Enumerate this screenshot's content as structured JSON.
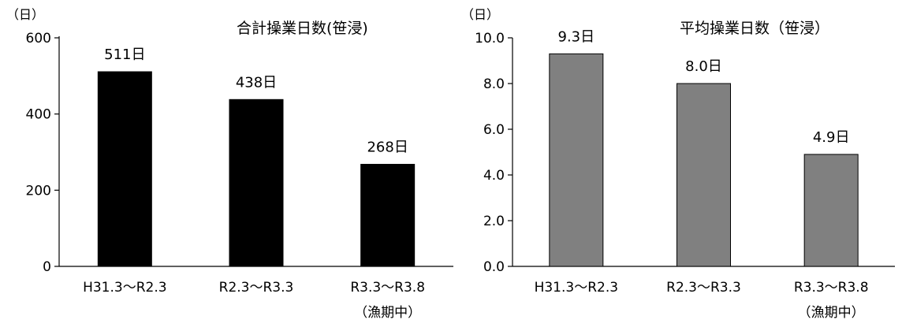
{
  "chart_data": [
    {
      "type": "bar",
      "title": "合計操業日数(笹浸)",
      "unit_label": "（日）",
      "categories": [
        "H31.3〜R2.3",
        "R2.3〜R3.3",
        "R3.3〜R3.8"
      ],
      "category_sublabels": [
        "",
        "",
        "（漁期中）"
      ],
      "values": [
        511,
        438,
        268
      ],
      "data_labels": [
        "511日",
        "438日",
        "268日"
      ],
      "ylim": [
        0,
        600
      ],
      "yticks": [
        "0",
        "200",
        "400",
        "600"
      ],
      "bar_color": "#000000",
      "grid": false
    },
    {
      "type": "bar",
      "title": "平均操業日数（笹浸）",
      "unit_label": "（日）",
      "categories": [
        "H31.3〜R2.3",
        "R2.3〜R3.3",
        "R3.3〜R3.8"
      ],
      "category_sublabels": [
        "",
        "",
        "（漁期中）"
      ],
      "values": [
        9.3,
        8.0,
        4.9
      ],
      "data_labels": [
        "9.3日",
        "8.0日",
        "4.9日"
      ],
      "ylim": [
        0,
        10
      ],
      "yticks": [
        "0.0",
        "2.0",
        "4.0",
        "6.0",
        "8.0",
        "10.0"
      ],
      "bar_color": "#808080",
      "grid": false
    }
  ]
}
